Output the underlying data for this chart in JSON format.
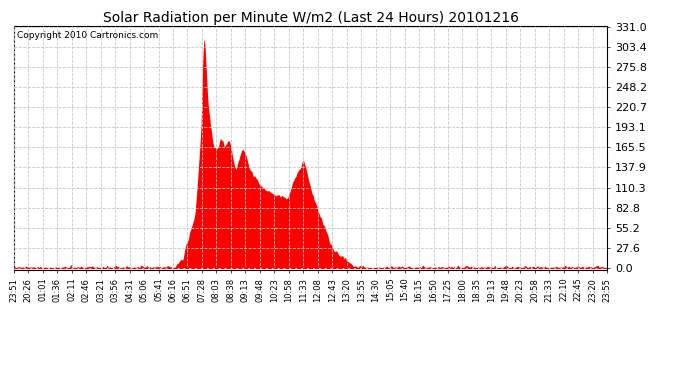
{
  "title": "Solar Radiation per Minute W/m2 (Last 24 Hours) 20101216",
  "copyright": "Copyright 2010 Cartronics.com",
  "y_max": 331.0,
  "y_min": 0.0,
  "y_ticks": [
    0.0,
    27.6,
    55.2,
    82.8,
    110.3,
    137.9,
    165.5,
    193.1,
    220.7,
    248.2,
    275.8,
    303.4,
    331.0
  ],
  "background_color": "#ffffff",
  "fill_color": "#ff0000",
  "grid_color": "#c8c8c8",
  "dashed_bottom_color": "#ff0000",
  "x_labels": [
    "23:51",
    "20:26",
    "01:01",
    "01:36",
    "02:11",
    "02:46",
    "03:21",
    "03:56",
    "04:31",
    "05:06",
    "05:41",
    "06:16",
    "06:51",
    "07:28",
    "08:03",
    "08:38",
    "09:13",
    "09:48",
    "10:23",
    "10:58",
    "11:33",
    "12:08",
    "12:43",
    "13:20",
    "13:55",
    "14:30",
    "15:05",
    "15:40",
    "16:15",
    "16:50",
    "17:25",
    "18:00",
    "18:35",
    "19:13",
    "19:48",
    "20:23",
    "20:58",
    "21:33",
    "22:10",
    "22:45",
    "23:20",
    "23:55"
  ],
  "num_points": 1440,
  "title_fontsize": 10,
  "copyright_fontsize": 6.5,
  "ytick_fontsize": 8,
  "xtick_fontsize": 6
}
